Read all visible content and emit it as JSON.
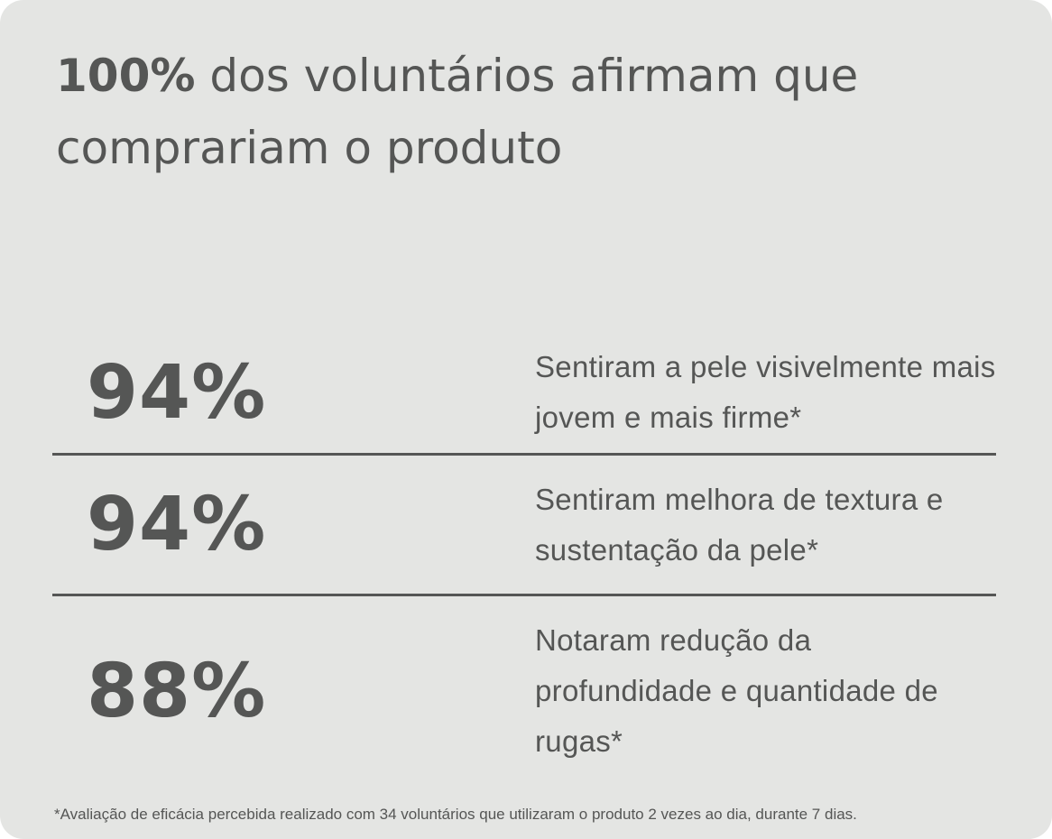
{
  "headline": {
    "highlight": "100%",
    "text": "dos voluntários afirmam que comprariam o produto"
  },
  "stats": [
    {
      "value": "94%",
      "description": "Sentiram a pele visivelmente mais jovem e mais firme*"
    },
    {
      "value": "94%",
      "description": "Sentiram melhora de textura e sustentação da pele*"
    },
    {
      "value": "88%",
      "description": "Notaram redução da profundidade e quantidade de rugas*"
    }
  ],
  "footnote": "*Avaliação de eficácia percebida realizado com 34 voluntários que utilizaram o produto 2 vezes ao dia, durante 7 dias."
}
